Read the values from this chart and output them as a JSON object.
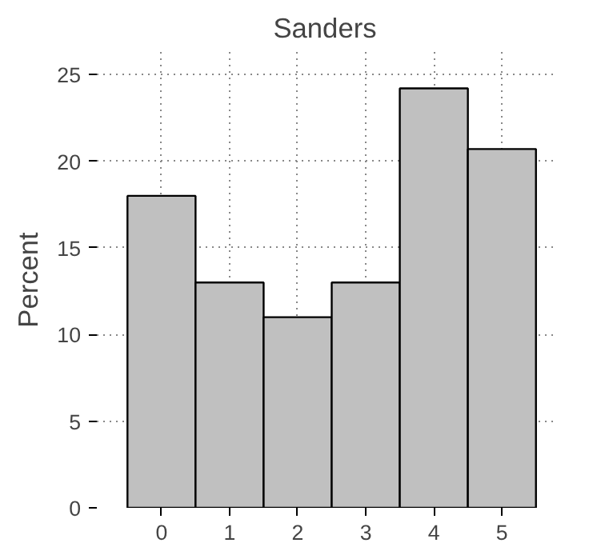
{
  "chart_data": {
    "type": "histogram",
    "title": "Sanders",
    "ylabel": "Percent",
    "bins": [
      -0.5,
      0.5,
      1.5,
      2.5,
      3.5,
      4.5,
      5.5
    ],
    "values": [
      18.0,
      13.0,
      11.0,
      13.0,
      24.2,
      20.7
    ],
    "color": "#c0c0c0",
    "xlim": [
      -0.95,
      5.75
    ],
    "ylim": [
      0,
      26.3
    ],
    "xticks": [
      0,
      1,
      2,
      3,
      4,
      5
    ],
    "yticks": [
      0,
      5,
      10,
      15,
      20,
      25
    ],
    "grid": true
  }
}
